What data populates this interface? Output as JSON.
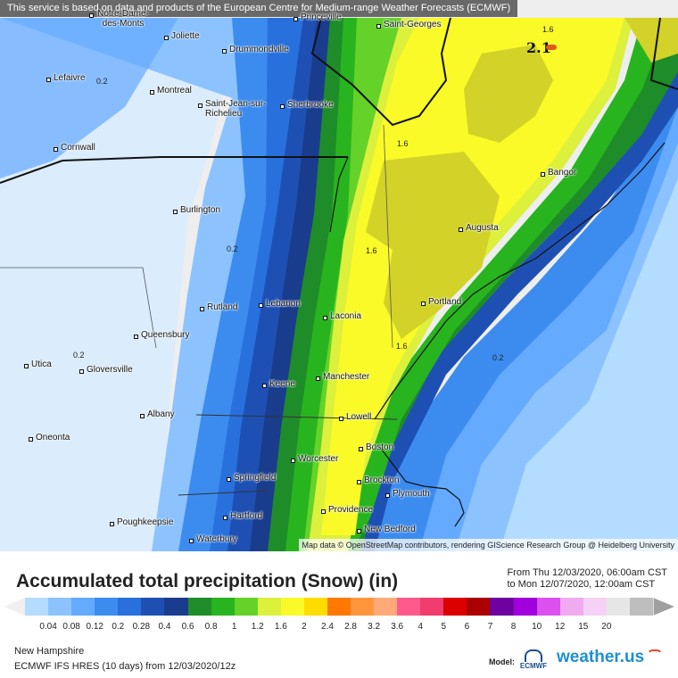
{
  "banner": "This service is based on data and products of the European Centre for Medium-range Weather Forecasts (ECMWF)",
  "attribution": "Map data © OpenStreetMap contributors, rendering GIScience Research Group @ Heidelberg University",
  "title": "Accumulated total precipitation (Snow) (in)",
  "period_from": "From Thu 12/03/2020, 06:00am CST",
  "period_to": "to Mon 12/07/2020, 12:00am CST",
  "region": "New Hampshire",
  "model_run": "ECMWF IFS HRES (10 days) from 12/03/2020/12z",
  "model_label": "Model:",
  "model_logo": "ECMWF",
  "brand": "weather.us",
  "max_value": "2.1",
  "legend": {
    "labels": [
      "0.04",
      "0.08",
      "0.12",
      "0.2",
      "0.28",
      "0.4",
      "0.6",
      "0.8",
      "1",
      "1.2",
      "1.6",
      "2",
      "2.4",
      "2.8",
      "3.2",
      "3.6",
      "4",
      "5",
      "6",
      "7",
      "8",
      "10",
      "12",
      "15",
      "20"
    ],
    "colors": [
      "#b4dcff",
      "#8cc3ff",
      "#64aaff",
      "#3c8cf0",
      "#2870dc",
      "#1e50b4",
      "#1a3c8c",
      "#1e8c28",
      "#28b41e",
      "#64d228",
      "#dcf03c",
      "#fafa28",
      "#ffdc00",
      "#ff7800",
      "#ff963c",
      "#ffaa78",
      "#ff5a8c",
      "#f03c6e",
      "#dc0000",
      "#aa0000",
      "#6e00a0",
      "#a000dc",
      "#dc50f0",
      "#f0aaf0",
      "#f5d2f5",
      "#e6e6e6",
      "#bebebe"
    ]
  },
  "cities": [
    {
      "name": "Princeville"
    },
    {
      "name": "Saint-Georges"
    },
    {
      "name": "Joliette"
    },
    {
      "name": "Notre-Dame-des-Monts"
    },
    {
      "name": "Drummondville"
    },
    {
      "name": "Lefaivre"
    },
    {
      "name": "Montreal"
    },
    {
      "name": "Saint-Jean-sur-Richelieu"
    },
    {
      "name": "Sherbrooke"
    },
    {
      "name": "Cornwall"
    },
    {
      "name": "Bangor"
    },
    {
      "name": "Burlington"
    },
    {
      "name": "Augusta"
    },
    {
      "name": "Lebanon"
    },
    {
      "name": "Rutland"
    },
    {
      "name": "Laconia"
    },
    {
      "name": "Portland"
    },
    {
      "name": "Queensbury"
    },
    {
      "name": "Utica"
    },
    {
      "name": "Gloversville"
    },
    {
      "name": "Manchester"
    },
    {
      "name": "Keene"
    },
    {
      "name": "Albany"
    },
    {
      "name": "Lowell"
    },
    {
      "name": "Oneonta"
    },
    {
      "name": "Boston"
    },
    {
      "name": "Worcester"
    },
    {
      "name": "Springfield"
    },
    {
      "name": "Brockton"
    },
    {
      "name": "Plymouth"
    },
    {
      "name": "Hartford"
    },
    {
      "name": "Providence"
    },
    {
      "name": "Poughkeepsie"
    },
    {
      "name": "New Bedford"
    },
    {
      "name": "Waterbury"
    }
  ]
}
